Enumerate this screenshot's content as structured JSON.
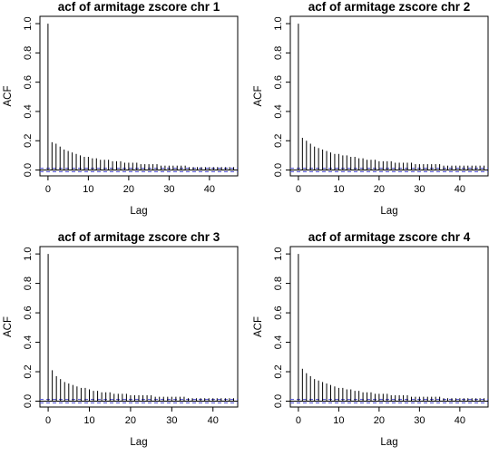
{
  "colors": {
    "bars": "#000000",
    "confidence_band": "#5b5bd6",
    "zero_line": "#000000",
    "frame": "#000000"
  },
  "chart_data": [
    {
      "type": "bar",
      "subtype": "acf",
      "title": "acf of armitage zscore chr 1",
      "xlabel": "Lag",
      "ylabel": "ACF",
      "xlim": [
        -2,
        47
      ],
      "ylim": [
        -0.04,
        1.05
      ],
      "xticks": [
        0,
        10,
        20,
        30,
        40
      ],
      "yticks": [
        0.0,
        0.2,
        0.4,
        0.6,
        0.8,
        1.0
      ],
      "confidence_band": 0.012,
      "grid": false,
      "legend": "none",
      "lags": [
        0,
        1,
        2,
        3,
        4,
        5,
        6,
        7,
        8,
        9,
        10,
        11,
        12,
        13,
        14,
        15,
        16,
        17,
        18,
        19,
        20,
        21,
        22,
        23,
        24,
        25,
        26,
        27,
        28,
        29,
        30,
        31,
        32,
        33,
        34,
        35,
        36,
        37,
        38,
        39,
        40,
        41,
        42,
        43,
        44,
        45,
        46
      ],
      "values": [
        1.0,
        0.19,
        0.18,
        0.16,
        0.14,
        0.13,
        0.12,
        0.11,
        0.1,
        0.09,
        0.09,
        0.08,
        0.08,
        0.07,
        0.07,
        0.07,
        0.06,
        0.06,
        0.06,
        0.05,
        0.05,
        0.05,
        0.05,
        0.04,
        0.04,
        0.04,
        0.04,
        0.04,
        0.03,
        0.03,
        0.03,
        0.03,
        0.03,
        0.03,
        0.03,
        0.02,
        0.02,
        0.02,
        0.02,
        0.02,
        0.02,
        0.02,
        0.02,
        0.02,
        0.02,
        0.02,
        0.02
      ]
    },
    {
      "type": "bar",
      "subtype": "acf",
      "title": "acf of armitage zscore chr 2",
      "xlabel": "Lag",
      "ylabel": "ACF",
      "xlim": [
        -2,
        47
      ],
      "ylim": [
        -0.04,
        1.05
      ],
      "xticks": [
        0,
        10,
        20,
        30,
        40
      ],
      "yticks": [
        0.0,
        0.2,
        0.4,
        0.6,
        0.8,
        1.0
      ],
      "confidence_band": 0.012,
      "grid": false,
      "legend": "none",
      "lags": [
        0,
        1,
        2,
        3,
        4,
        5,
        6,
        7,
        8,
        9,
        10,
        11,
        12,
        13,
        14,
        15,
        16,
        17,
        18,
        19,
        20,
        21,
        22,
        23,
        24,
        25,
        26,
        27,
        28,
        29,
        30,
        31,
        32,
        33,
        34,
        35,
        36,
        37,
        38,
        39,
        40,
        41,
        42,
        43,
        44,
        45,
        46
      ],
      "values": [
        1.0,
        0.22,
        0.2,
        0.18,
        0.16,
        0.15,
        0.14,
        0.13,
        0.12,
        0.11,
        0.11,
        0.1,
        0.1,
        0.09,
        0.09,
        0.08,
        0.08,
        0.07,
        0.07,
        0.07,
        0.06,
        0.06,
        0.06,
        0.06,
        0.05,
        0.05,
        0.05,
        0.05,
        0.05,
        0.04,
        0.04,
        0.04,
        0.04,
        0.04,
        0.04,
        0.04,
        0.03,
        0.03,
        0.03,
        0.03,
        0.03,
        0.03,
        0.03,
        0.03,
        0.03,
        0.03,
        0.03
      ]
    },
    {
      "type": "bar",
      "subtype": "acf",
      "title": "acf of armitage zscore chr 3",
      "xlabel": "Lag",
      "ylabel": "ACF",
      "xlim": [
        -2,
        46
      ],
      "ylim": [
        -0.04,
        1.05
      ],
      "xticks": [
        0,
        10,
        20,
        30,
        40
      ],
      "yticks": [
        0.0,
        0.2,
        0.4,
        0.6,
        0.8,
        1.0
      ],
      "confidence_band": 0.012,
      "grid": false,
      "legend": "none",
      "lags": [
        0,
        1,
        2,
        3,
        4,
        5,
        6,
        7,
        8,
        9,
        10,
        11,
        12,
        13,
        14,
        15,
        16,
        17,
        18,
        19,
        20,
        21,
        22,
        23,
        24,
        25,
        26,
        27,
        28,
        29,
        30,
        31,
        32,
        33,
        34,
        35,
        36,
        37,
        38,
        39,
        40,
        41,
        42,
        43,
        44,
        45
      ],
      "values": [
        1.0,
        0.21,
        0.17,
        0.15,
        0.13,
        0.12,
        0.11,
        0.1,
        0.09,
        0.09,
        0.08,
        0.07,
        0.07,
        0.06,
        0.06,
        0.06,
        0.05,
        0.05,
        0.05,
        0.05,
        0.04,
        0.04,
        0.04,
        0.04,
        0.04,
        0.04,
        0.03,
        0.03,
        0.03,
        0.03,
        0.03,
        0.03,
        0.03,
        0.03,
        0.02,
        0.02,
        0.02,
        0.02,
        0.02,
        0.02,
        0.02,
        0.02,
        0.02,
        0.02,
        0.02,
        0.02
      ]
    },
    {
      "type": "bar",
      "subtype": "acf",
      "title": "acf of armitage zscore chr 4",
      "xlabel": "Lag",
      "ylabel": "ACF",
      "xlim": [
        -2,
        47
      ],
      "ylim": [
        -0.04,
        1.05
      ],
      "xticks": [
        0,
        10,
        20,
        30,
        40
      ],
      "yticks": [
        0.0,
        0.2,
        0.4,
        0.6,
        0.8,
        1.0
      ],
      "confidence_band": 0.012,
      "grid": false,
      "legend": "none",
      "lags": [
        0,
        1,
        2,
        3,
        4,
        5,
        6,
        7,
        8,
        9,
        10,
        11,
        12,
        13,
        14,
        15,
        16,
        17,
        18,
        19,
        20,
        21,
        22,
        23,
        24,
        25,
        26,
        27,
        28,
        29,
        30,
        31,
        32,
        33,
        34,
        35,
        36,
        37,
        38,
        39,
        40,
        41,
        42,
        43,
        44,
        45,
        46
      ],
      "values": [
        1.0,
        0.22,
        0.19,
        0.17,
        0.15,
        0.14,
        0.13,
        0.12,
        0.11,
        0.1,
        0.09,
        0.09,
        0.08,
        0.08,
        0.07,
        0.07,
        0.06,
        0.06,
        0.06,
        0.05,
        0.05,
        0.05,
        0.05,
        0.04,
        0.04,
        0.04,
        0.04,
        0.04,
        0.03,
        0.03,
        0.03,
        0.03,
        0.03,
        0.03,
        0.03,
        0.03,
        0.02,
        0.02,
        0.02,
        0.02,
        0.02,
        0.02,
        0.02,
        0.02,
        0.02,
        0.02,
        0.02
      ]
    }
  ]
}
